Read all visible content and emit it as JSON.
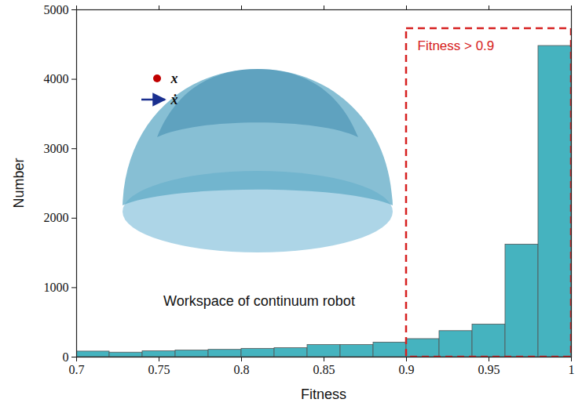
{
  "chart_data": {
    "type": "histogram",
    "xlabel": "Fitness",
    "ylabel": "Number",
    "bins": [
      0.7,
      0.72,
      0.74,
      0.76,
      0.78,
      0.8,
      0.82,
      0.84,
      0.86,
      0.88,
      0.9,
      0.92,
      0.94,
      0.96,
      0.98,
      1.0
    ],
    "counts": [
      80,
      65,
      85,
      95,
      105,
      120,
      130,
      175,
      175,
      210,
      260,
      375,
      470,
      1620,
      4480
    ],
    "color": "#45b3bf",
    "xlim": [
      0.7,
      1
    ],
    "ylim": [
      0,
      5000
    ],
    "xticks": [
      0.7,
      0.75,
      0.8,
      0.85,
      0.9,
      0.95,
      1
    ],
    "yticks": [
      0,
      1000,
      2000,
      3000,
      4000,
      5000
    ],
    "annotations": [
      {
        "text": "Fitness > 0.9",
        "x": [
          0.9,
          1
        ],
        "y": [
          0,
          4730
        ],
        "color": "#d62020",
        "line_style": "dashed"
      }
    ],
    "inset": {
      "title": "Workspace of continuum robot",
      "legend": [
        {
          "name": "x",
          "color": "#c00000",
          "marker": "dot"
        },
        {
          "name": "ẋ",
          "color": "#1a2f8f",
          "marker": "arrow"
        }
      ]
    }
  }
}
